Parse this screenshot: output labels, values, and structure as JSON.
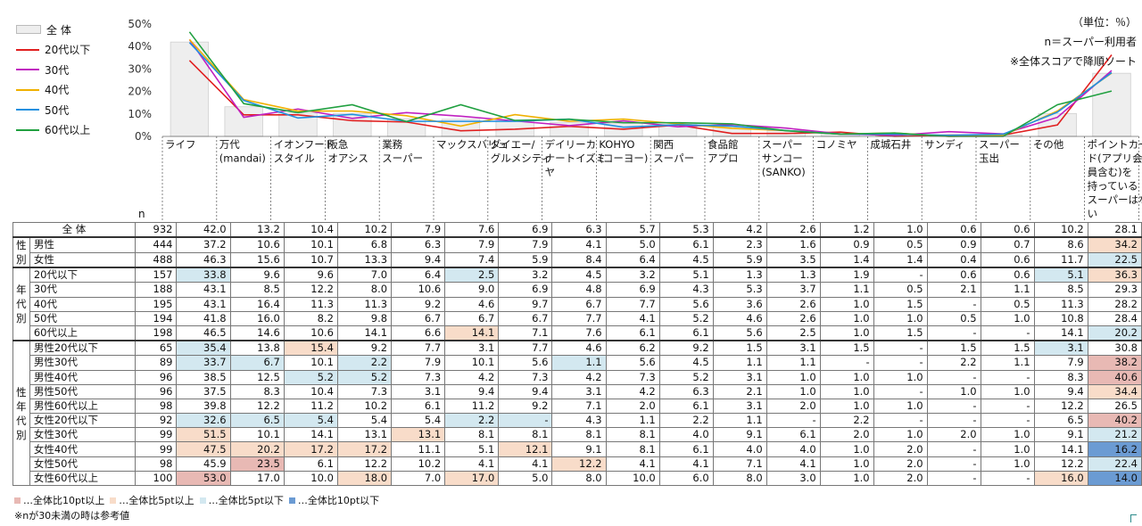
{
  "notes": {
    "unit": "（単位：％）",
    "n_def": "n＝スーパー利用者",
    "sort": "※全体スコアで降順ソート"
  },
  "chart_data": {
    "type": "bar",
    "ylim": [
      0,
      50
    ],
    "yticks": [
      "0%",
      "10%",
      "20%",
      "30%",
      "40%",
      "50%"
    ],
    "categories": [
      "ライフ",
      "万代\n(mandai)",
      "イオンフード\nスタイル",
      "阪急\nオアシス",
      "業務\nスーパー",
      "マックスバリュ",
      "ダイエー/\nグルメシティ",
      "デイリーカ\nナートイズミ\nヤ",
      "KOHYO\n(コーヨー)",
      "関西\nスーパー",
      "食品館\nアプロ",
      "スーパー\nサンコー\n(SANKO)",
      "コノミヤ",
      "成城石井",
      "サンディ",
      "スーパー\n玉出",
      "その他",
      "ポイントカー\nド(アプリ会\n員含む)を\n持っている\nスーパーはな\nい"
    ],
    "bar_series": {
      "name": "全 体",
      "color": "#eeeeee",
      "values": [
        42.0,
        13.2,
        10.4,
        10.2,
        7.9,
        7.6,
        6.9,
        6.3,
        5.7,
        5.3,
        4.2,
        2.6,
        1.2,
        1.0,
        0.6,
        0.6,
        10.2,
        28.1
      ]
    },
    "line_series": [
      {
        "name": "20代以下",
        "color": "#e02020",
        "values": [
          33.8,
          9.6,
          9.6,
          7.0,
          6.4,
          2.5,
          3.2,
          4.5,
          3.2,
          5.1,
          1.3,
          1.3,
          1.9,
          null,
          0.6,
          0.6,
          5.1,
          36.3
        ]
      },
      {
        "name": "30代",
        "color": "#c020c0",
        "values": [
          43.1,
          8.5,
          12.2,
          8.0,
          10.6,
          9.0,
          6.9,
          4.8,
          6.9,
          4.3,
          5.3,
          3.7,
          1.1,
          0.5,
          2.1,
          1.1,
          8.5,
          29.3
        ]
      },
      {
        "name": "40代",
        "color": "#f0b000",
        "values": [
          43.1,
          16.4,
          11.3,
          11.3,
          9.2,
          4.6,
          9.7,
          6.7,
          7.7,
          5.6,
          3.6,
          2.6,
          1.0,
          1.5,
          null,
          0.5,
          11.3,
          28.2
        ]
      },
      {
        "name": "50代",
        "color": "#2090e0",
        "values": [
          41.8,
          16.0,
          8.2,
          9.8,
          6.7,
          6.7,
          6.7,
          7.7,
          4.1,
          5.2,
          4.6,
          2.6,
          1.0,
          1.0,
          0.5,
          1.0,
          10.8,
          28.4
        ]
      },
      {
        "name": "60代以上",
        "color": "#20a040",
        "values": [
          46.5,
          14.6,
          10.6,
          14.1,
          6.6,
          14.1,
          7.1,
          7.6,
          6.1,
          6.1,
          5.6,
          2.5,
          1.0,
          1.5,
          null,
          null,
          14.1,
          20.2
        ]
      }
    ]
  },
  "table": {
    "n_header": "n",
    "rows": [
      {
        "group": "",
        "label": "全 体",
        "n": "932",
        "values": [
          "42.0",
          "13.2",
          "10.4",
          "10.2",
          "7.9",
          "7.6",
          "6.9",
          "6.3",
          "5.7",
          "5.3",
          "4.2",
          "2.6",
          "1.2",
          "1.0",
          "0.6",
          "0.6",
          "10.2",
          "28.1"
        ],
        "hl": {}
      },
      {
        "group": "性\n別",
        "span": 2,
        "sep": true,
        "label": "男性",
        "n": "444",
        "values": [
          "37.2",
          "10.6",
          "10.1",
          "6.8",
          "6.3",
          "7.9",
          "7.9",
          "4.1",
          "5.0",
          "6.1",
          "2.3",
          "1.6",
          "0.9",
          "0.5",
          "0.9",
          "0.7",
          "8.6",
          "34.2"
        ],
        "hl": {
          "17": "hi5"
        }
      },
      {
        "label": "女性",
        "n": "488",
        "values": [
          "46.3",
          "15.6",
          "10.7",
          "13.3",
          "9.4",
          "7.4",
          "5.9",
          "8.4",
          "6.4",
          "4.5",
          "5.9",
          "3.5",
          "1.4",
          "1.4",
          "0.4",
          "0.6",
          "11.7",
          "22.5"
        ],
        "hl": {
          "17": "lo5"
        }
      },
      {
        "group": "年\n代\n別",
        "span": 5,
        "sep": true,
        "label": "20代以下",
        "n": "157",
        "values": [
          "33.8",
          "9.6",
          "9.6",
          "7.0",
          "6.4",
          "2.5",
          "3.2",
          "4.5",
          "3.2",
          "5.1",
          "1.3",
          "1.3",
          "1.9",
          "-",
          "0.6",
          "0.6",
          "5.1",
          "36.3"
        ],
        "hl": {
          "0": "lo5",
          "5": "lo5",
          "16": "lo5",
          "17": "hi5"
        }
      },
      {
        "label": "30代",
        "n": "188",
        "values": [
          "43.1",
          "8.5",
          "12.2",
          "8.0",
          "10.6",
          "9.0",
          "6.9",
          "4.8",
          "6.9",
          "4.3",
          "5.3",
          "3.7",
          "1.1",
          "0.5",
          "2.1",
          "1.1",
          "8.5",
          "29.3"
        ],
        "hl": {}
      },
      {
        "label": "40代",
        "n": "195",
        "values": [
          "43.1",
          "16.4",
          "11.3",
          "11.3",
          "9.2",
          "4.6",
          "9.7",
          "6.7",
          "7.7",
          "5.6",
          "3.6",
          "2.6",
          "1.0",
          "1.5",
          "-",
          "0.5",
          "11.3",
          "28.2"
        ],
        "hl": {}
      },
      {
        "label": "50代",
        "n": "194",
        "values": [
          "41.8",
          "16.0",
          "8.2",
          "9.8",
          "6.7",
          "6.7",
          "6.7",
          "7.7",
          "4.1",
          "5.2",
          "4.6",
          "2.6",
          "1.0",
          "1.0",
          "0.5",
          "1.0",
          "10.8",
          "28.4"
        ],
        "hl": {}
      },
      {
        "label": "60代以上",
        "n": "198",
        "values": [
          "46.5",
          "14.6",
          "10.6",
          "14.1",
          "6.6",
          "14.1",
          "7.1",
          "7.6",
          "6.1",
          "6.1",
          "5.6",
          "2.5",
          "1.0",
          "1.5",
          "-",
          "-",
          "14.1",
          "20.2"
        ],
        "hl": {
          "5": "hi5",
          "17": "lo5"
        }
      },
      {
        "group": "性\n年\n代\n別",
        "span": 10,
        "sep": true,
        "label": "男性20代以下",
        "n": "65",
        "values": [
          "35.4",
          "13.8",
          "15.4",
          "9.2",
          "7.7",
          "3.1",
          "7.7",
          "4.6",
          "6.2",
          "9.2",
          "1.5",
          "3.1",
          "1.5",
          "-",
          "1.5",
          "1.5",
          "3.1",
          "30.8"
        ],
        "hl": {
          "0": "lo5",
          "2": "hi5",
          "16": "lo5"
        }
      },
      {
        "label": "男性30代",
        "n": "89",
        "values": [
          "33.7",
          "6.7",
          "10.1",
          "2.2",
          "7.9",
          "10.1",
          "5.6",
          "1.1",
          "5.6",
          "4.5",
          "1.1",
          "1.1",
          "-",
          "-",
          "2.2",
          "1.1",
          "7.9",
          "38.2"
        ],
        "hl": {
          "0": "lo5",
          "1": "lo5",
          "3": "lo5",
          "7": "lo5",
          "17": "hi10"
        }
      },
      {
        "label": "男性40代",
        "n": "96",
        "values": [
          "38.5",
          "12.5",
          "5.2",
          "5.2",
          "7.3",
          "4.2",
          "7.3",
          "4.2",
          "7.3",
          "5.2",
          "3.1",
          "1.0",
          "1.0",
          "1.0",
          "-",
          "-",
          "8.3",
          "40.6"
        ],
        "hl": {
          "2": "lo5",
          "3": "lo5",
          "17": "hi10"
        }
      },
      {
        "label": "男性50代",
        "n": "96",
        "values": [
          "37.5",
          "8.3",
          "10.4",
          "7.3",
          "3.1",
          "9.4",
          "9.4",
          "3.1",
          "4.2",
          "6.3",
          "2.1",
          "1.0",
          "1.0",
          "-",
          "1.0",
          "1.0",
          "9.4",
          "34.4"
        ],
        "hl": {
          "17": "hi5"
        }
      },
      {
        "label": "男性60代以上",
        "n": "98",
        "values": [
          "39.8",
          "12.2",
          "11.2",
          "10.2",
          "6.1",
          "11.2",
          "9.2",
          "7.1",
          "2.0",
          "6.1",
          "3.1",
          "2.0",
          "1.0",
          "1.0",
          "-",
          "-",
          "12.2",
          "26.5"
        ],
        "hl": {}
      },
      {
        "label": "女性20代以下",
        "n": "92",
        "values": [
          "32.6",
          "6.5",
          "5.4",
          "5.4",
          "5.4",
          "2.2",
          "-",
          "4.3",
          "1.1",
          "2.2",
          "1.1",
          "-",
          "2.2",
          "-",
          "-",
          "-",
          "6.5",
          "40.2"
        ],
        "hl": {
          "0": "lo5",
          "1": "lo5",
          "2": "lo5",
          "5": "lo5",
          "6": "lo5",
          "17": "hi10"
        }
      },
      {
        "label": "女性30代",
        "n": "99",
        "values": [
          "51.5",
          "10.1",
          "14.1",
          "13.1",
          "13.1",
          "8.1",
          "8.1",
          "8.1",
          "8.1",
          "4.0",
          "9.1",
          "6.1",
          "2.0",
          "1.0",
          "2.0",
          "1.0",
          "9.1",
          "21.2"
        ],
        "hl": {
          "0": "hi5",
          "4": "hi5",
          "17": "lo5"
        }
      },
      {
        "label": "女性40代",
        "n": "99",
        "values": [
          "47.5",
          "20.2",
          "17.2",
          "17.2",
          "11.1",
          "5.1",
          "12.1",
          "9.1",
          "8.1",
          "6.1",
          "4.0",
          "4.0",
          "1.0",
          "2.0",
          "-",
          "1.0",
          "14.1",
          "16.2"
        ],
        "hl": {
          "0": "hi5",
          "1": "hi5",
          "2": "hi5",
          "3": "hi5",
          "6": "hi5",
          "17": "lo10"
        }
      },
      {
        "label": "女性50代",
        "n": "98",
        "values": [
          "45.9",
          "23.5",
          "6.1",
          "12.2",
          "10.2",
          "4.1",
          "4.1",
          "12.2",
          "4.1",
          "4.1",
          "7.1",
          "4.1",
          "1.0",
          "2.0",
          "-",
          "1.0",
          "12.2",
          "22.4"
        ],
        "hl": {
          "1": "hi10",
          "7": "hi5",
          "17": "lo5"
        }
      },
      {
        "label": "女性60代以上",
        "n": "100",
        "values": [
          "53.0",
          "17.0",
          "10.0",
          "18.0",
          "7.0",
          "17.0",
          "5.0",
          "8.0",
          "10.0",
          "6.0",
          "8.0",
          "3.0",
          "1.0",
          "2.0",
          "-",
          "-",
          "16.0",
          "14.0"
        ],
        "hl": {
          "0": "hi10",
          "3": "hi5",
          "5": "hi5",
          "16": "hi5",
          "17": "lo10"
        }
      }
    ]
  },
  "footer": {
    "legend": [
      {
        "label": "…全体比10pt以上",
        "color": "#e8b9b4"
      },
      {
        "label": "…全体比5pt以上",
        "color": "#f8dcc9"
      },
      {
        "label": "…全体比5pt以下",
        "color": "#d3e8f0"
      },
      {
        "label": "…全体比10pt以下",
        "color": "#6b9bd3"
      }
    ],
    "note": "※nが30未満の時は参考値"
  }
}
